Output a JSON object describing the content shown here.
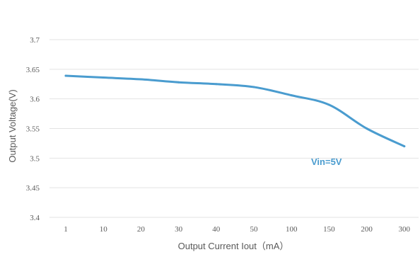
{
  "chart_data": {
    "type": "line",
    "title": "",
    "xlabel": "Output Current Iout（mA）",
    "ylabel": "Output Voltage(V)",
    "categories": [
      "1",
      "10",
      "20",
      "30",
      "40",
      "50",
      "100",
      "150",
      "200",
      "300"
    ],
    "yticks": [
      "3.4",
      "3.45",
      "3.5",
      "3.55",
      "3.6",
      "3.65",
      "3.7"
    ],
    "ylim": [
      3.4,
      3.7
    ],
    "grid": true,
    "series": [
      {
        "values": [
          3.639,
          3.636,
          3.633,
          3.628,
          3.625,
          3.62,
          3.606,
          3.59,
          3.55,
          3.52
        ]
      }
    ],
    "annotation": "Vin=5V",
    "line_color": "#4a9ccf",
    "annotation_color": "#4a9ccf",
    "grid_color": "#e3e3e3",
    "text_color": "#595959"
  }
}
